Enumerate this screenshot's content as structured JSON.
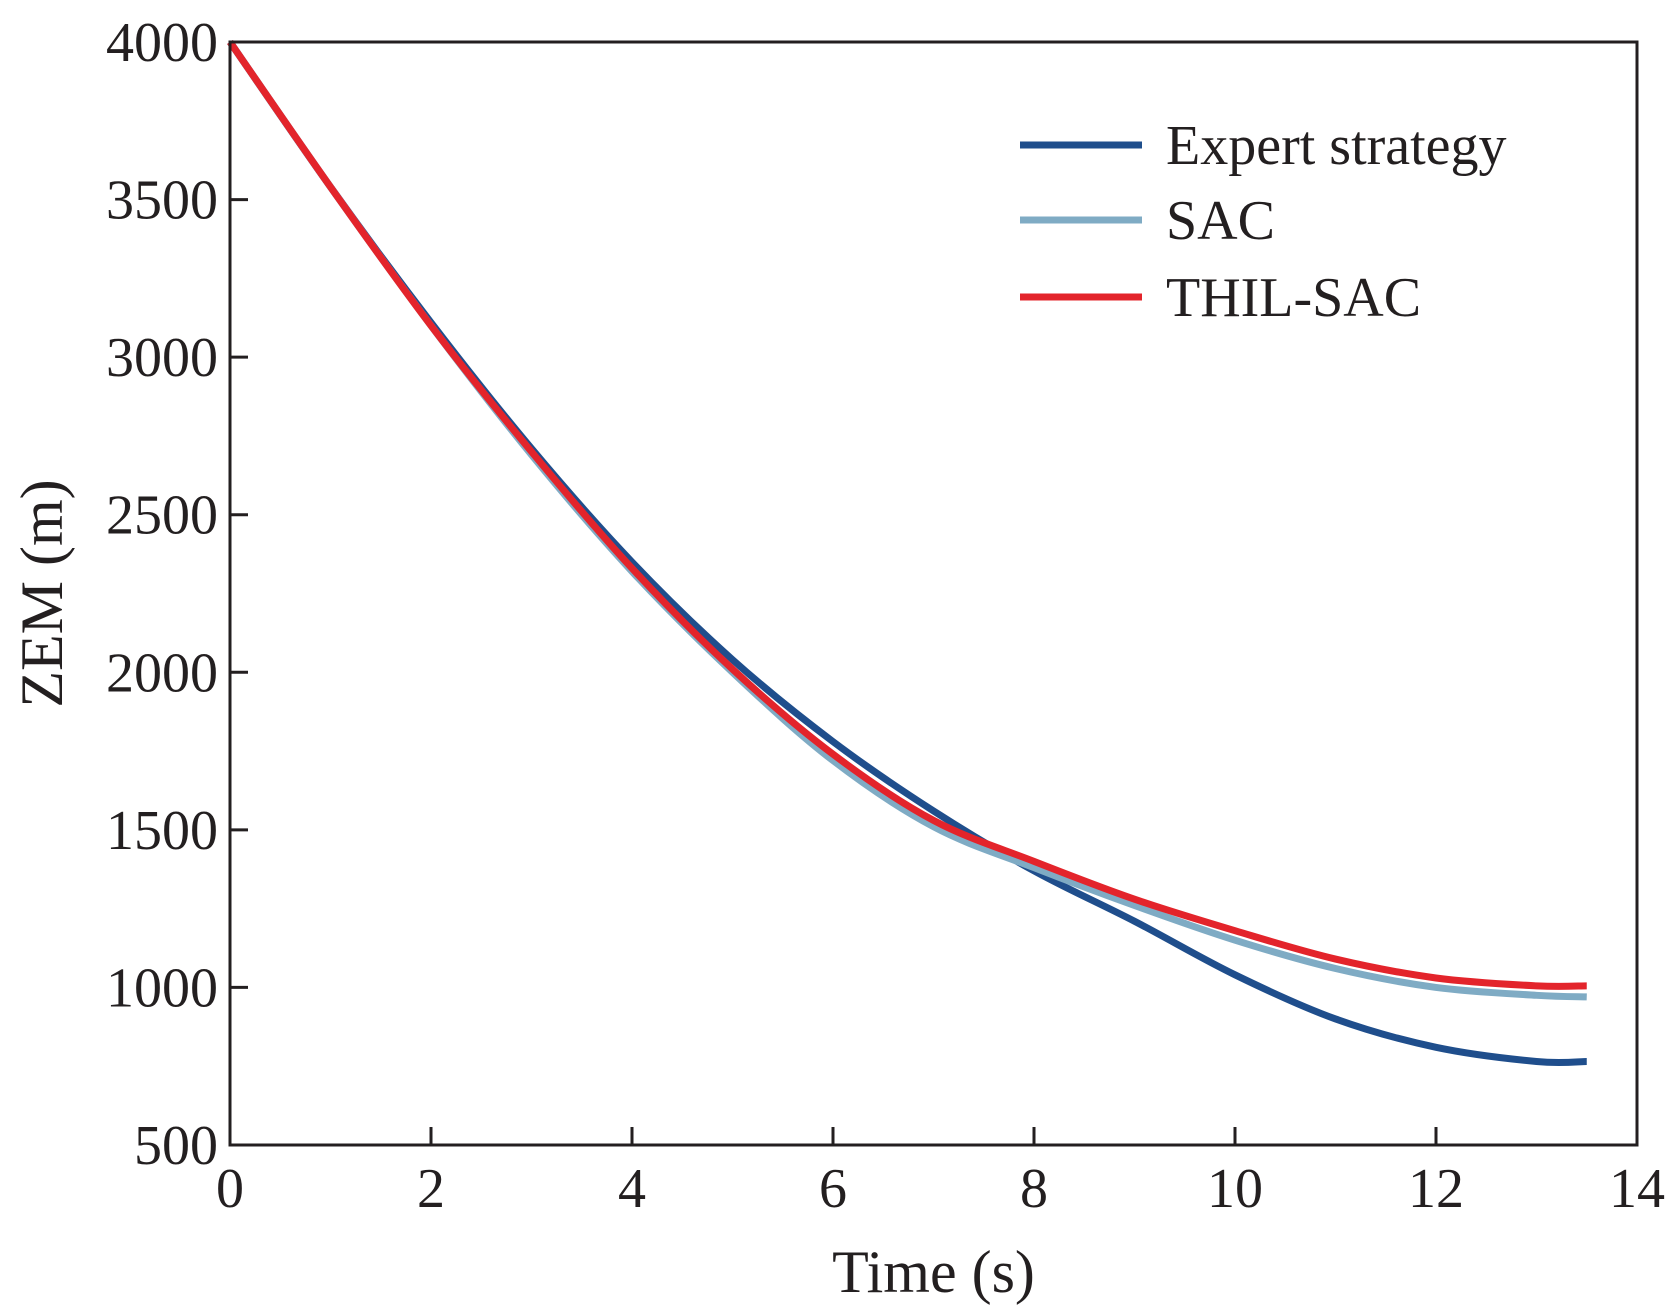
{
  "chart_data": {
    "type": "line",
    "title": "",
    "xlabel": "Time (s)",
    "ylabel": "ZEM (m)",
    "xlim": [
      0,
      14
    ],
    "ylim": [
      500,
      4000
    ],
    "xticks": [
      0,
      2,
      4,
      6,
      8,
      10,
      12,
      14
    ],
    "yticks": [
      500,
      1000,
      1500,
      2000,
      2500,
      3000,
      3500,
      4000
    ],
    "grid": false,
    "legend_position": "top-right",
    "x": [
      0,
      1,
      2,
      3,
      4,
      5,
      6,
      7,
      8,
      9,
      10,
      11,
      12,
      13,
      13.5
    ],
    "series": [
      {
        "name": "Expert strategy",
        "color": "#1f4e8c",
        "values": [
          4000,
          3540,
          3110,
          2710,
          2350,
          2040,
          1780,
          1560,
          1370,
          1210,
          1040,
          900,
          810,
          765,
          765
        ]
      },
      {
        "name": "SAC",
        "color": "#7fabc4",
        "values": [
          4000,
          3540,
          3100,
          2690,
          2320,
          2000,
          1720,
          1510,
          1380,
          1260,
          1150,
          1060,
          1000,
          975,
          970
        ]
      },
      {
        "name": "THIL-SAC",
        "color": "#e3242b",
        "values": [
          4000,
          3540,
          3100,
          2700,
          2330,
          2010,
          1740,
          1530,
          1400,
          1280,
          1180,
          1090,
          1030,
          1005,
          1005
        ]
      }
    ]
  }
}
